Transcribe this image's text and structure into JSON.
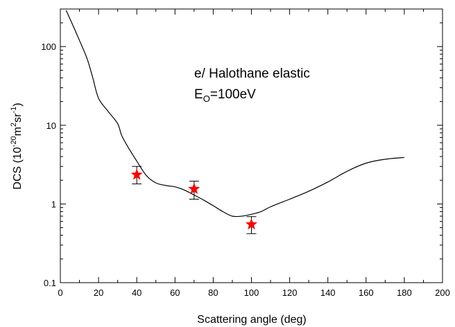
{
  "chart_data": {
    "type": "line",
    "annotation": {
      "line1": "e/ Halothane elastic",
      "line2_main": "E",
      "line2_sub": "O",
      "line2_rest": "=100eV"
    },
    "xlabel": "Scattering angle (deg)",
    "ylabel": {
      "pre": "DCS (10",
      "sup1": "-20",
      "mid1": "m",
      "sup2": "2",
      "mid2": "sr",
      "sup3": "-1",
      "post": ")"
    },
    "x_scale": "linear",
    "y_scale": "log",
    "xlim": [
      0,
      200
    ],
    "ylim": [
      0.1,
      300
    ],
    "x_ticks": [
      0,
      20,
      40,
      60,
      80,
      100,
      120,
      140,
      160,
      180,
      200
    ],
    "y_ticks": [
      0.1,
      1,
      10,
      100
    ],
    "y_tick_labels": [
      "0.1",
      "1",
      "10",
      "100"
    ],
    "grid": false,
    "series": [
      {
        "kind": "line",
        "color": "#000000",
        "x": [
          3,
          6,
          10,
          14,
          17,
          20,
          25,
          30,
          32,
          35,
          40,
          45,
          50,
          55,
          60,
          65,
          70,
          75,
          80,
          85,
          90,
          95,
          100,
          105,
          110,
          120,
          130,
          140,
          150,
          160,
          170,
          180
        ],
        "y": [
          290,
          200,
          120,
          70,
          40,
          22,
          15,
          10.5,
          7.5,
          5.5,
          3.5,
          2.3,
          1.85,
          1.72,
          1.65,
          1.5,
          1.3,
          1.12,
          0.95,
          0.8,
          0.7,
          0.7,
          0.74,
          0.8,
          0.92,
          1.15,
          1.45,
          1.9,
          2.6,
          3.3,
          3.7,
          3.9
        ]
      },
      {
        "kind": "points",
        "marker": "star",
        "color": "#ff0000",
        "x": [
          40,
          70,
          100
        ],
        "y": [
          2.35,
          1.55,
          0.55
        ],
        "y_err_low": [
          1.8,
          1.15,
          0.42
        ],
        "y_err_high": [
          3.0,
          1.95,
          0.69
        ]
      }
    ]
  }
}
